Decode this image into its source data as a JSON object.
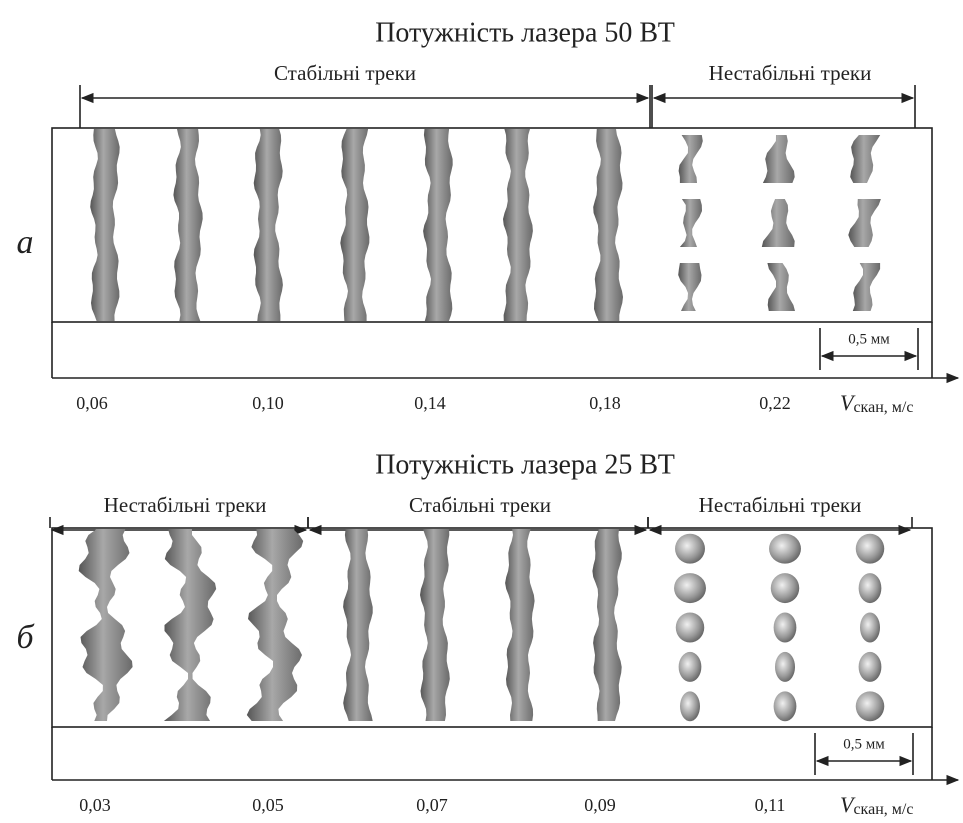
{
  "panels": [
    {
      "label": "а",
      "title": "Потужність лазера 50 ВТ",
      "regions": [
        "Стабільні треки",
        "Нестабільні треки"
      ],
      "ticks": [
        "0,06",
        "0,10",
        "0,14",
        "0,18",
        "0,22"
      ],
      "scale": "0,5 мм",
      "axis_symbol": "V",
      "axis_rest": "скан, м/с"
    },
    {
      "label": "б",
      "title": "Потужність лазера 25 ВТ",
      "regions": [
        "Нестабільні треки",
        "Стабільні треки",
        "Нестабільні треки"
      ],
      "ticks": [
        "0,03",
        "0,05",
        "0,07",
        "0,09",
        "0,11"
      ],
      "scale": "0,5 мм",
      "axis_symbol": "V",
      "axis_rest": "скан, м/с"
    }
  ]
}
